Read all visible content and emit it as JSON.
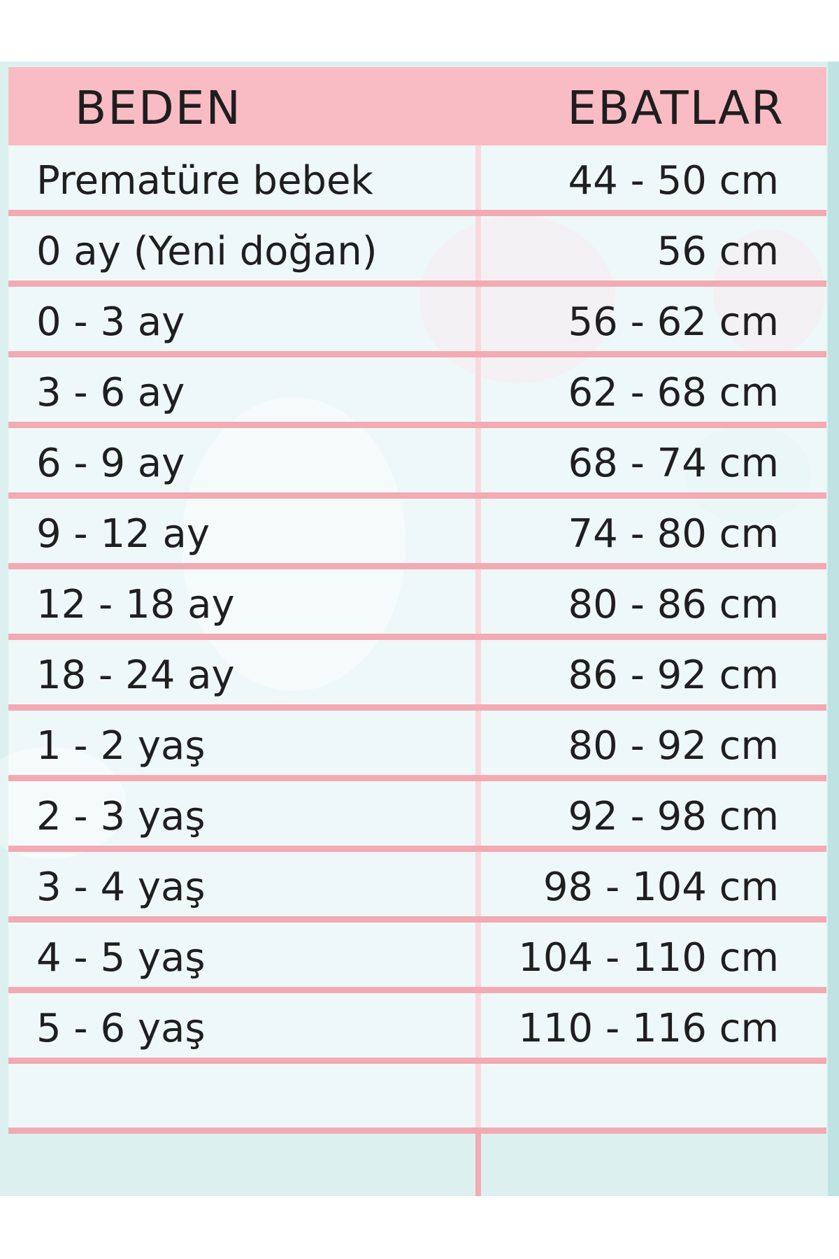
{
  "header": {
    "size_label": "BEDEN",
    "dimension_label": "EBATLAR"
  },
  "rows": [
    {
      "size": "Prematüre bebek",
      "dimension": "44 - 50 cm"
    },
    {
      "size": "0 ay (Yeni doğan)",
      "dimension": "56 cm"
    },
    {
      "size": "0 - 3 ay",
      "dimension": "56 - 62 cm"
    },
    {
      "size": "3 - 6 ay",
      "dimension": "62 - 68 cm"
    },
    {
      "size": "6 - 9 ay",
      "dimension": "68 - 74 cm"
    },
    {
      "size": "9 - 12 ay",
      "dimension": "74 - 80 cm"
    },
    {
      "size": "12 - 18 ay",
      "dimension": "80 - 86 cm"
    },
    {
      "size": "18 - 24 ay",
      "dimension": "86 - 92 cm"
    },
    {
      "size": "1 - 2 yaş",
      "dimension": "80 - 92 cm"
    },
    {
      "size": "2 - 3 yaş",
      "dimension": "92 - 98 cm"
    },
    {
      "size": "3 - 4 yaş",
      "dimension": "98 - 104 cm"
    },
    {
      "size": "4 - 5 yaş",
      "dimension": "104 - 110 cm"
    },
    {
      "size": "5 - 6 yaş",
      "dimension": "110 - 116 cm"
    },
    {
      "size": "",
      "dimension": ""
    }
  ],
  "colors": {
    "header_bg": "#f9bcc4",
    "row_divider": "#f2aab3",
    "background": "#dcf0f0"
  }
}
